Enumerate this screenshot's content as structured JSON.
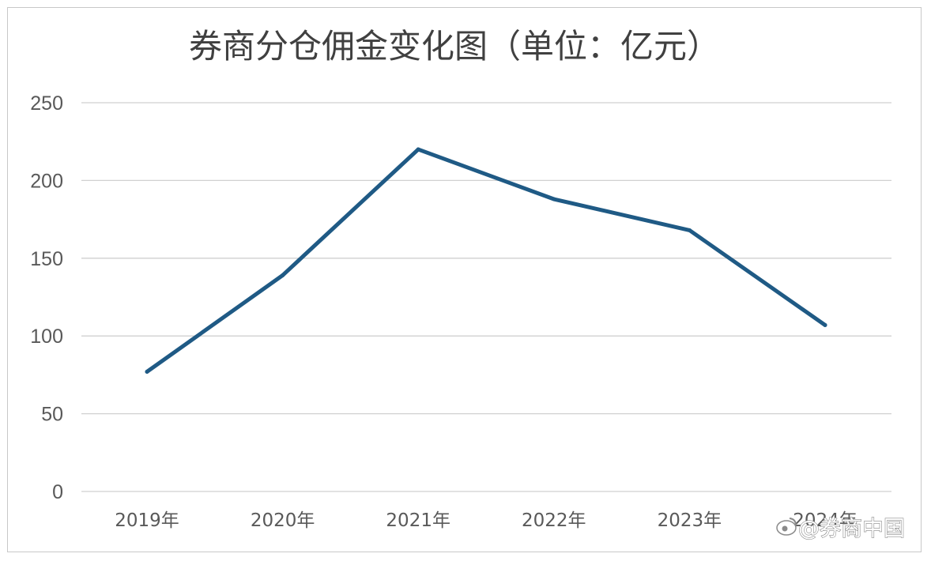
{
  "chart_data": {
    "type": "line",
    "title": "券商分仓佣金变化图（单位：亿元）",
    "categories": [
      "2019年",
      "2020年",
      "2021年",
      "2022年",
      "2023年",
      "2024年"
    ],
    "series": [
      {
        "values": [
          77,
          139,
          220,
          188,
          168,
          107
        ]
      }
    ],
    "ylim": [
      0,
      250
    ],
    "yticks": [
      0,
      50,
      100,
      150,
      200,
      250
    ],
    "grid": true,
    "legend": "none",
    "colors": {
      "line": "#1f5a85",
      "grid": "#d0d0d0",
      "text": "#595959"
    }
  },
  "watermark": {
    "text": "@券商中国",
    "icon": "weibo-logo-icon"
  }
}
